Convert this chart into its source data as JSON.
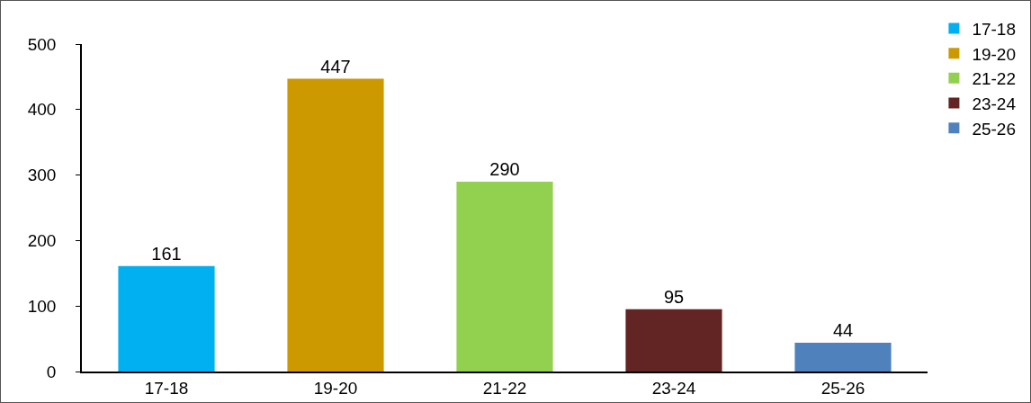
{
  "chart_data": {
    "type": "bar",
    "categories": [
      "17-18",
      "19-20",
      "21-22",
      "23-24",
      "25-26"
    ],
    "series": [
      {
        "name": "17-18",
        "color": "#00b0f0",
        "values": [
          161,
          null,
          null,
          null,
          null
        ]
      },
      {
        "name": "19-20",
        "color": "#cc9900",
        "values": [
          null,
          447,
          null,
          null,
          null
        ]
      },
      {
        "name": "21-22",
        "color": "#92d050",
        "values": [
          null,
          null,
          290,
          null,
          null
        ]
      },
      {
        "name": "23-24",
        "color": "#632523",
        "values": [
          null,
          null,
          null,
          95,
          null
        ]
      },
      {
        "name": "25-26",
        "color": "#4f81bd",
        "values": [
          null,
          null,
          null,
          null,
          44
        ]
      }
    ],
    "ylim": [
      0,
      500
    ],
    "yticks": [
      0,
      100,
      200,
      300,
      400,
      500
    ],
    "grid": false,
    "legend": "top right",
    "data_labels": true
  }
}
